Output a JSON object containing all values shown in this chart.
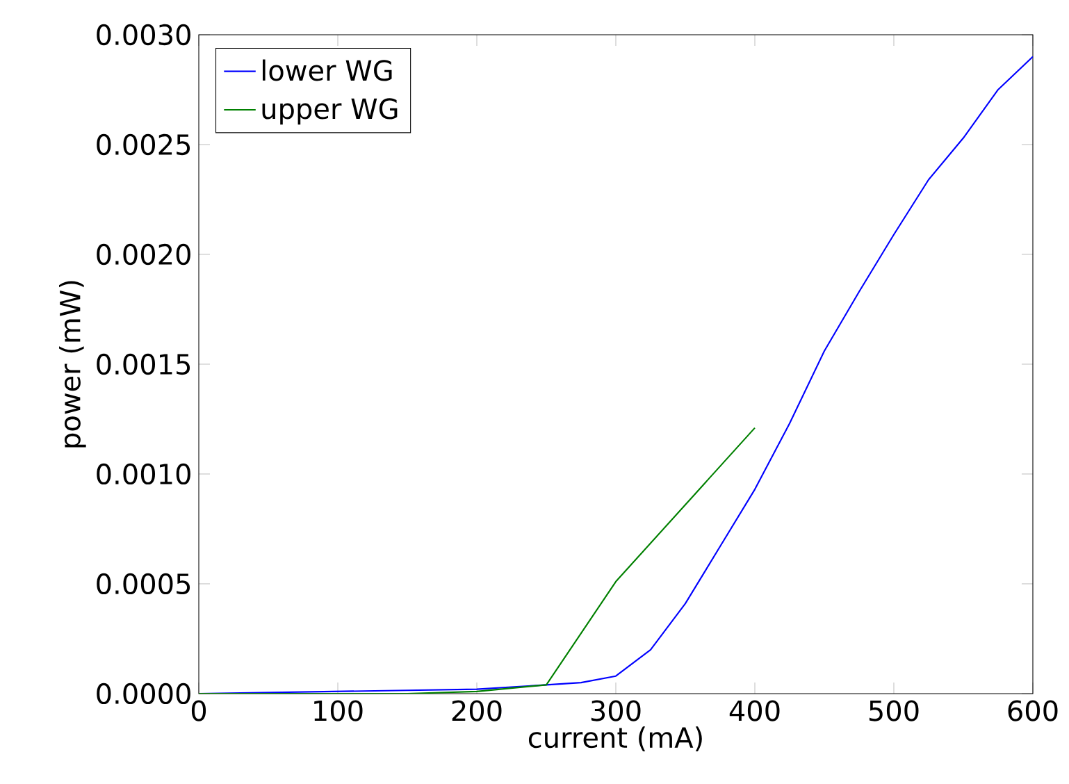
{
  "chart_data": {
    "type": "line",
    "xlabel": "current (mA)",
    "ylabel": "power (mW)",
    "xlim": [
      0,
      600
    ],
    "xticks": [
      0,
      100,
      200,
      300,
      400,
      500,
      600
    ],
    "ylim": [
      0,
      0.003
    ],
    "yticks": [
      {
        "value": 0,
        "label": "0.0000"
      },
      {
        "value": 0.0005,
        "label": "0.0005"
      },
      {
        "value": 0.001,
        "label": "0.0010"
      },
      {
        "value": 0.0015,
        "label": "0.0015"
      },
      {
        "value": 0.002,
        "label": "0.0020"
      },
      {
        "value": 0.0025,
        "label": "0.0025"
      },
      {
        "value": 0.003,
        "label": "0.0030"
      }
    ],
    "legend": "top left",
    "grid": false,
    "series": [
      {
        "name": "lower WG",
        "color": "#0000ff",
        "x": [
          0,
          50,
          100,
          150,
          200,
          250,
          275,
          300,
          325,
          350,
          375,
          400,
          425,
          450,
          475,
          500,
          525,
          550,
          575,
          600
        ],
        "values": [
          0,
          5e-06,
          1e-05,
          1.5e-05,
          2e-05,
          4e-05,
          5e-05,
          8e-05,
          0.0002,
          0.00041,
          0.00067,
          0.00093,
          0.00123,
          0.00156,
          0.00183,
          0.00209,
          0.00234,
          0.00253,
          0.00275,
          0.0029
        ]
      },
      {
        "name": "upper WG",
        "color": "#008000",
        "x": [
          0,
          50,
          100,
          150,
          200,
          250,
          300,
          350,
          400
        ],
        "values": [
          0,
          0,
          0,
          0,
          1e-05,
          4e-05,
          0.00051,
          0.00086,
          0.00121
        ]
      }
    ]
  }
}
